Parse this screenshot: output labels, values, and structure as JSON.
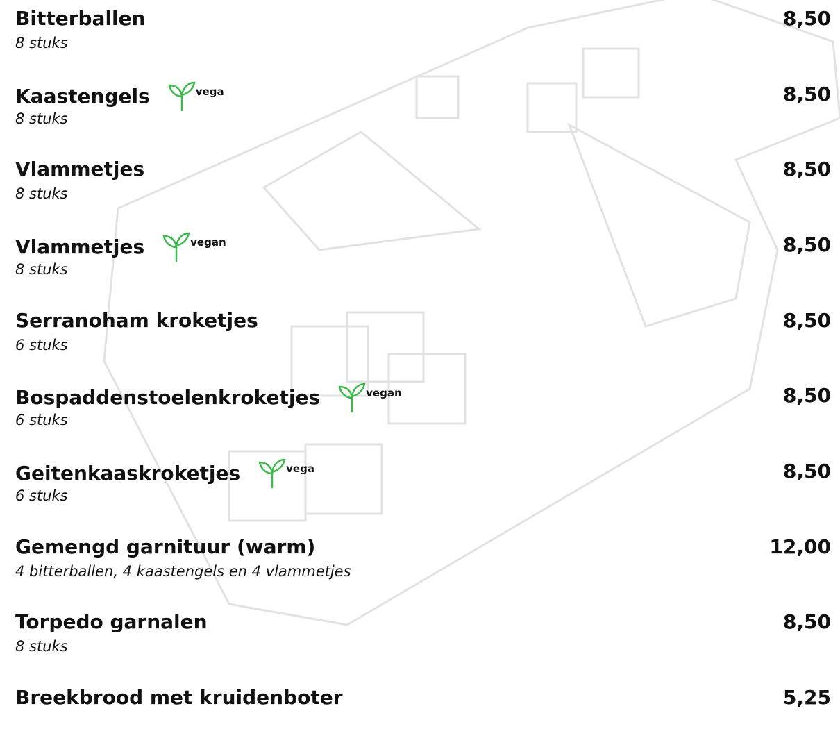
{
  "items": [
    {
      "name": "Bitterballen",
      "description": "8 stuks",
      "price": "8,50"
    },
    {
      "name": "Kaastengels",
      "badge": "vega",
      "description": "8 stuks",
      "price": "8,50"
    },
    {
      "name": "Vlammetjes",
      "description": "8 stuks",
      "price": "8,50"
    },
    {
      "name": "Vlammetjes",
      "badge": "vegan",
      "description": "8 stuks",
      "price": "8,50"
    },
    {
      "name": "Serranoham kroketjes",
      "description": "6 stuks",
      "price": "8,50"
    },
    {
      "name": "Bospaddenstoelenkroketjes",
      "badge": "vegan",
      "description": "6 stuks",
      "price": "8,50"
    },
    {
      "name": "Geitenkaaskroketjes",
      "badge": "vega",
      "description": "6 stuks",
      "price": "8,50"
    },
    {
      "name": "Gemengd garnituur (warm)",
      "description": "4 bitterballen, 4 kaastengels en 4 vlammetjes",
      "price": "12,00"
    },
    {
      "name": "Torpedo garnalen",
      "description": "8 stuks",
      "price": "8,50"
    },
    {
      "name": "Breekbrood met kruidenboter",
      "price": "5,25"
    }
  ]
}
